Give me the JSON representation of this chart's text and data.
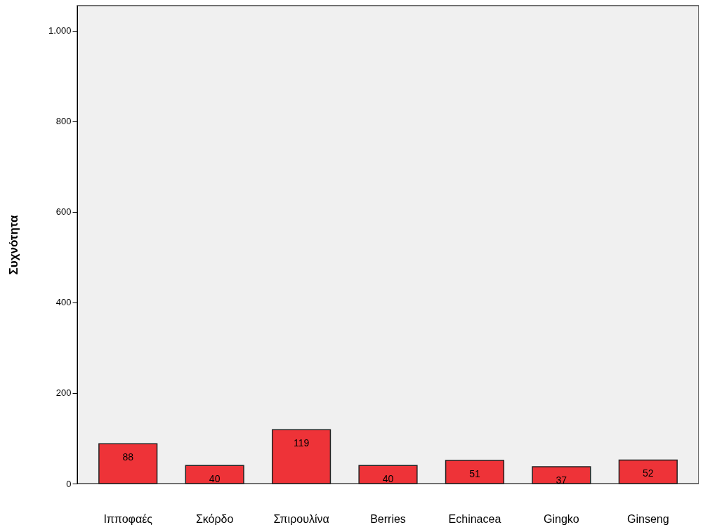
{
  "chart_data": {
    "type": "bar",
    "ylabel": "Συχνότητα",
    "categories": [
      "Ιπποφαές",
      "Σκόρδο",
      "Σπιρουλίνα",
      "Berries",
      "Echinacea",
      "Gingko",
      "Ginseng"
    ],
    "values": [
      88,
      40,
      119,
      40,
      51,
      37,
      52
    ],
    "color": "#ee3338",
    "ylim": [
      0,
      1055
    ],
    "yticks": [
      0,
      200,
      400,
      600,
      800,
      {
        "value": 1000,
        "label": "1.000"
      }
    ],
    "data_labels": true,
    "grid": false
  }
}
